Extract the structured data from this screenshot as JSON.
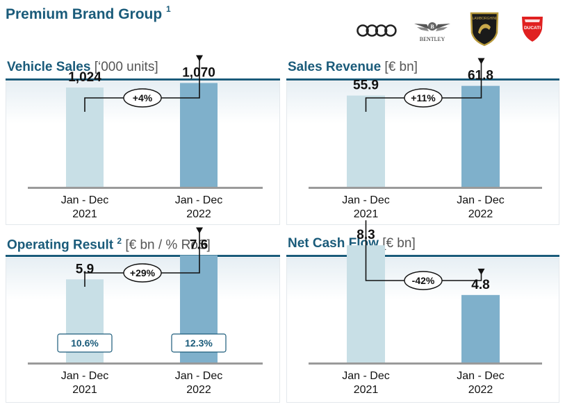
{
  "page": {
    "title": "Premium Brand Group",
    "title_footnote": "1",
    "brands": [
      {
        "name": "Audi",
        "icon": "audi-rings-icon"
      },
      {
        "name": "BENTLEY",
        "icon": "bentley-wings-icon"
      },
      {
        "name": "LAMBORGHINI",
        "icon": "lamborghini-shield-icon"
      },
      {
        "name": "DUCATI",
        "icon": "ducati-shield-icon"
      }
    ],
    "colors": {
      "accent": "#1a5b7a",
      "bar_2021": "#c8dfe6",
      "bar_2022": "#7fb0cb"
    }
  },
  "chart_data": [
    {
      "type": "bar",
      "title": "Vehicle Sales",
      "unit": "[‘000 units]",
      "categories": [
        [
          "Jan - Dec",
          "2021"
        ],
        [
          "Jan - Dec",
          "2022"
        ]
      ],
      "values": [
        1024,
        1070
      ],
      "value_labels": [
        "1,024",
        "1,070"
      ],
      "change": "+4%",
      "ylim": [
        0,
        1600
      ]
    },
    {
      "type": "bar",
      "title": "Sales Revenue",
      "unit": "[€ bn]",
      "categories": [
        [
          "Jan - Dec",
          "2021"
        ],
        [
          "Jan - Dec",
          "2022"
        ]
      ],
      "values": [
        55.9,
        61.8
      ],
      "value_labels": [
        "55.9",
        "61.8"
      ],
      "change": "+11%",
      "ylim": [
        0,
        95
      ]
    },
    {
      "type": "bar",
      "title": "Operating Result",
      "title_footnote": "2",
      "unit": "[€ bn / % RoS]",
      "categories": [
        [
          "Jan - Dec",
          "2021"
        ],
        [
          "Jan - Dec",
          "2022"
        ]
      ],
      "values": [
        5.9,
        7.6
      ],
      "value_labels": [
        "5.9",
        "7.6"
      ],
      "ros": [
        "10.6%",
        "12.3%"
      ],
      "change": "+29%",
      "ylim": [
        0,
        11
      ]
    },
    {
      "type": "bar",
      "title": "Net Cash Flow",
      "unit": "[€ bn]",
      "categories": [
        [
          "Jan - Dec",
          "2021"
        ],
        [
          "Jan - Dec",
          "2022"
        ]
      ],
      "values": [
        8.3,
        4.8
      ],
      "value_labels": [
        "8.3",
        "4.8"
      ],
      "change": "-42%",
      "ylim": [
        0,
        11
      ]
    }
  ]
}
